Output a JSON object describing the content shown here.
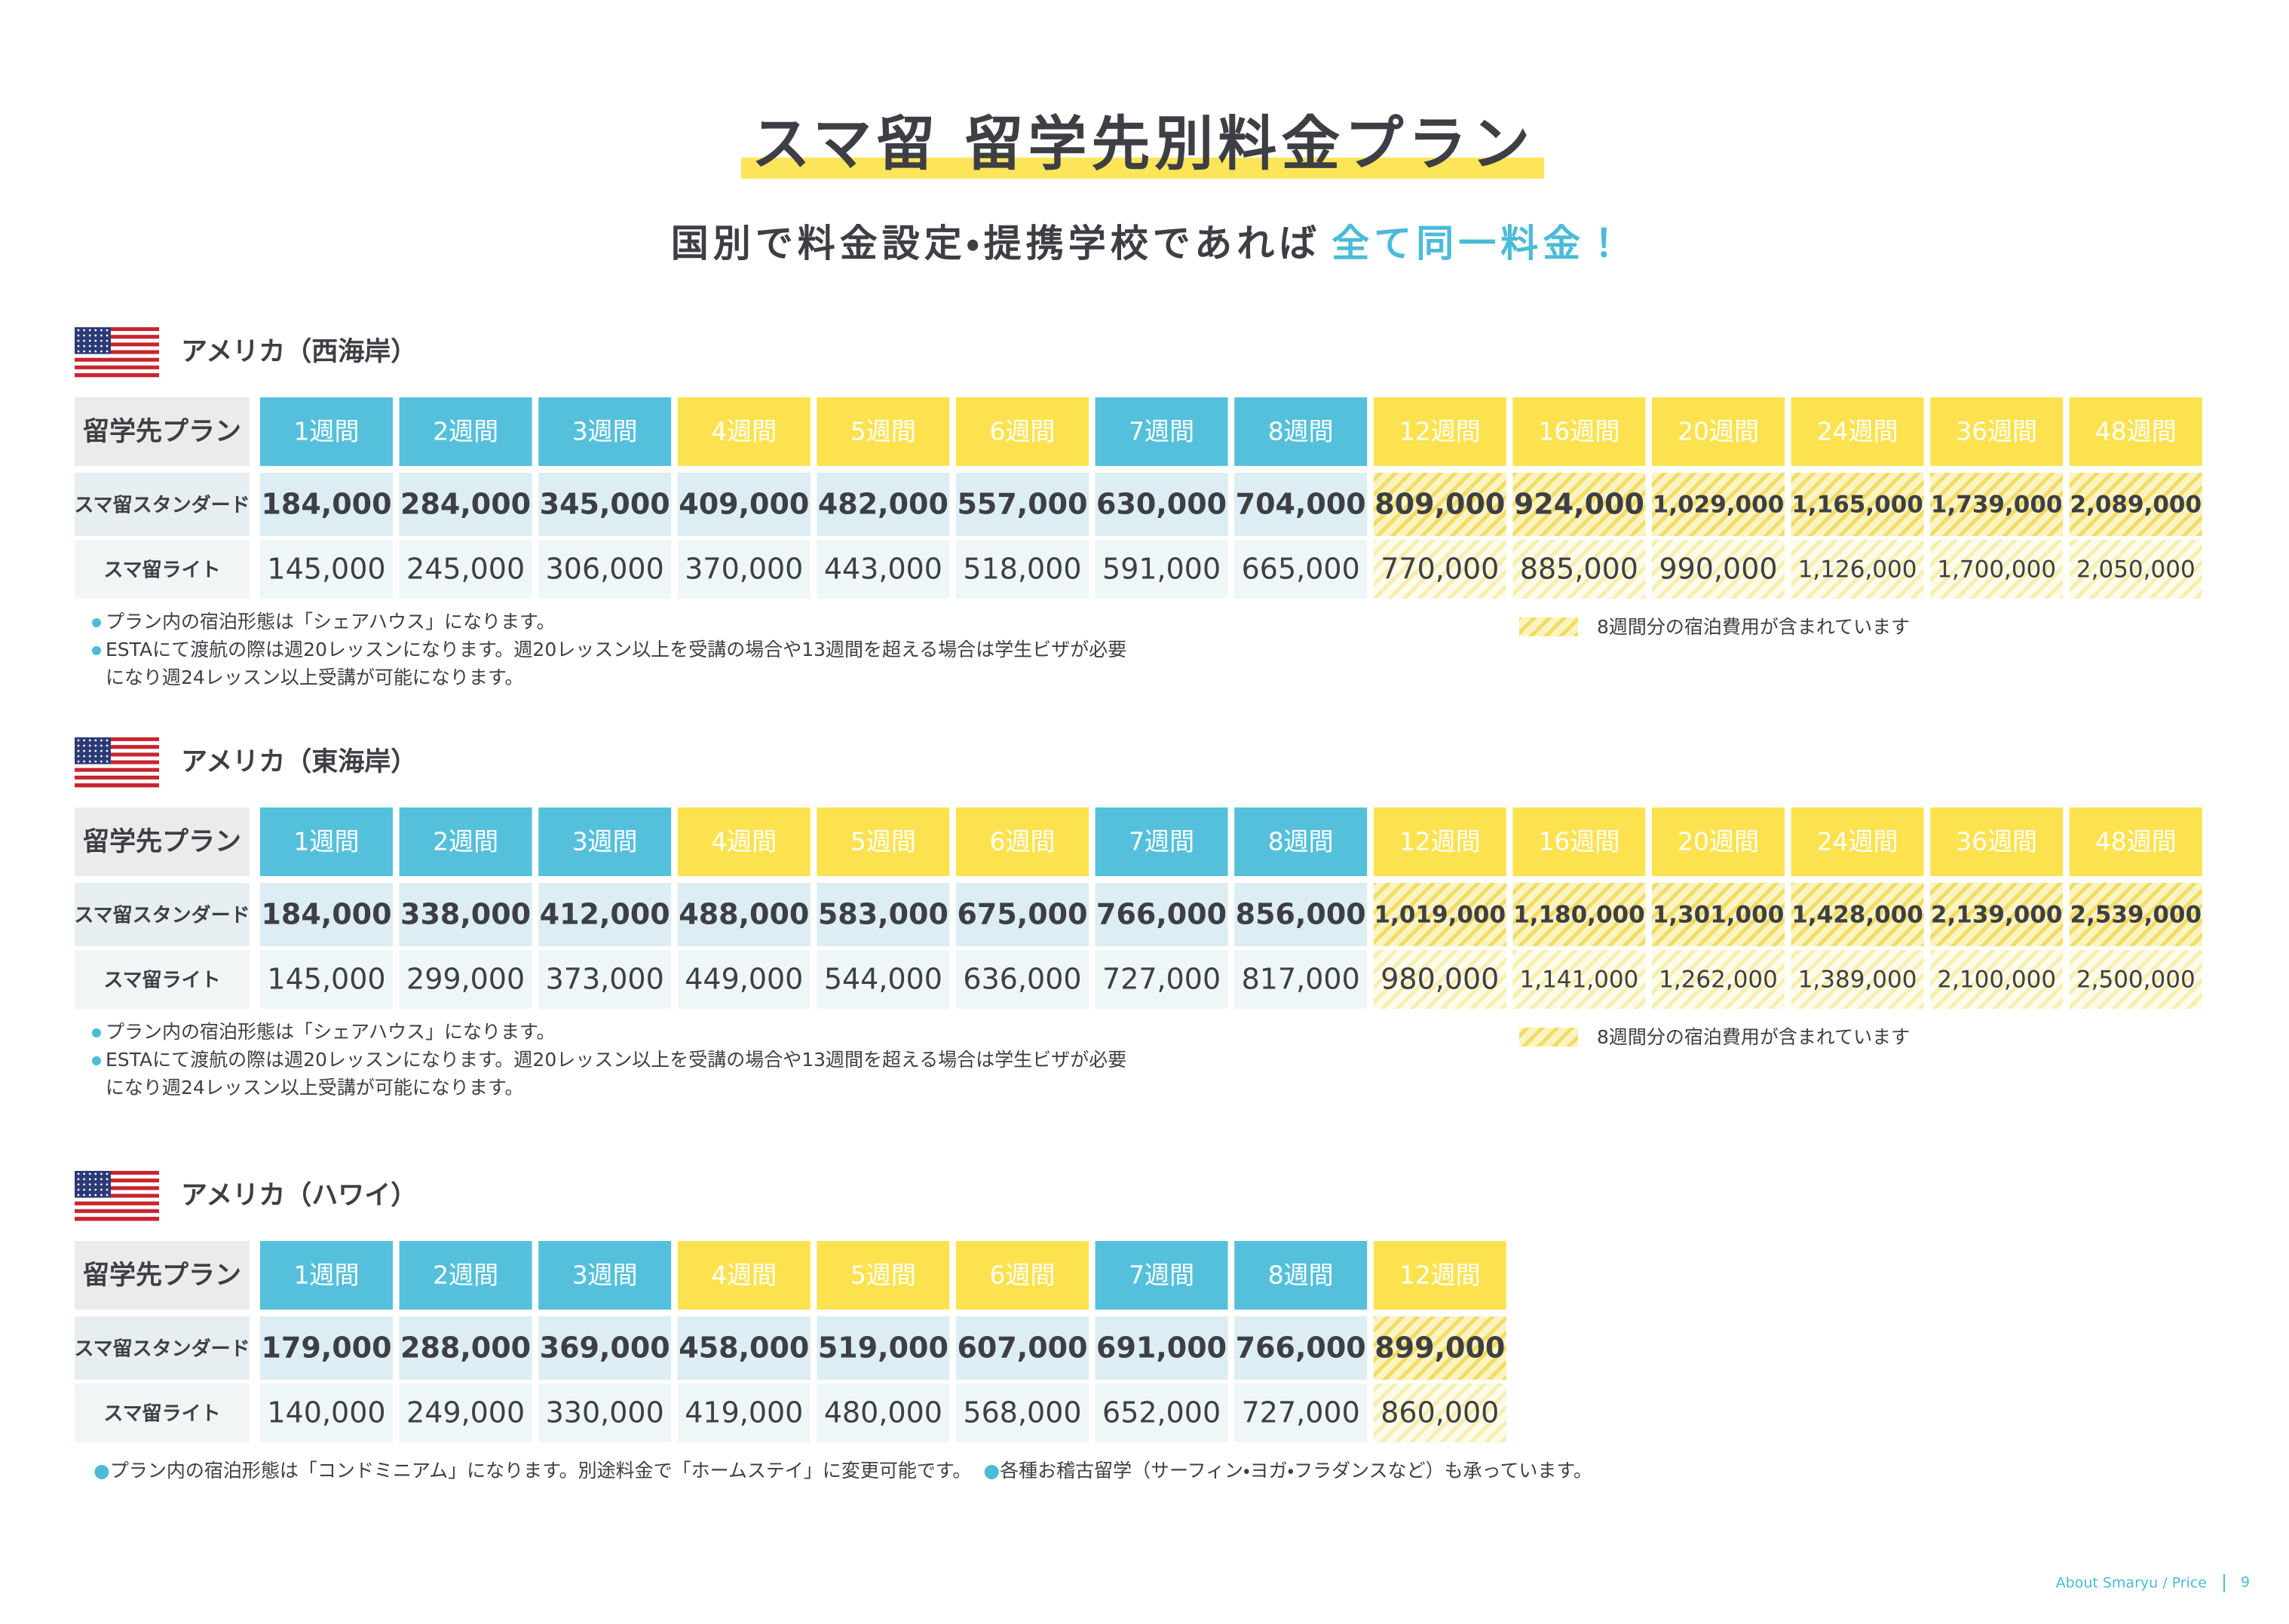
{
  "header": {
    "title": "スマ留 留学先別料金プラン",
    "subtitle_main": "国別で料金設定・提携学校であれば",
    "subtitle_highlight": "全て同一料金！"
  },
  "sections": [
    {
      "region": "アメリカ（西海岸）",
      "header_label": "留学先プラン",
      "weeks": [
        "1週間",
        "2週間",
        "3週間",
        "4週間",
        "5週間",
        "6週間",
        "7週間",
        "8週間",
        "12週間",
        "16週間",
        "20週間",
        "24週間",
        "36週間",
        "48週間"
      ],
      "rows": [
        {
          "label": "スマ留スタンダード",
          "values": [
            "184,000",
            "284,000",
            "345,000",
            "409,000",
            "482,000",
            "557,000",
            "630,000",
            "704,000",
            "809,000",
            "924,000",
            "1,029,000",
            "1,165,000",
            "1,739,000",
            "2,089,000"
          ]
        },
        {
          "label": "スマ留ライト",
          "values": [
            "145,000",
            "245,000",
            "306,000",
            "370,000",
            "443,000",
            "518,000",
            "591,000",
            "665,000",
            "770,000",
            "885,000",
            "990,000",
            "1,126,000",
            "1,700,000",
            "2,050,000"
          ]
        }
      ],
      "notes": [
        [
          "プラン内の宿泊形態は「シェアハウス」になります。"
        ],
        [
          "ESTAにて渡航の際は週20レッスンになります。週20レッスン以上を受講の場合や13週間を超える場合は学生ビザが必要",
          "になり週24レッスン以上受講が可能になります。"
        ]
      ],
      "legend": "8週間分の宿泊費用が含まれています"
    },
    {
      "region": "アメリカ（東海岸）",
      "header_label": "留学先プラン",
      "weeks": [
        "1週間",
        "2週間",
        "3週間",
        "4週間",
        "5週間",
        "6週間",
        "7週間",
        "8週間",
        "12週間",
        "16週間",
        "20週間",
        "24週間",
        "36週間",
        "48週間"
      ],
      "rows": [
        {
          "label": "スマ留スタンダード",
          "values": [
            "184,000",
            "338,000",
            "412,000",
            "488,000",
            "583,000",
            "675,000",
            "766,000",
            "856,000",
            "1,019,000",
            "1,180,000",
            "1,301,000",
            "1,428,000",
            "2,139,000",
            "2,539,000"
          ]
        },
        {
          "label": "スマ留ライト",
          "values": [
            "145,000",
            "299,000",
            "373,000",
            "449,000",
            "544,000",
            "636,000",
            "727,000",
            "817,000",
            "980,000",
            "1,141,000",
            "1,262,000",
            "1,389,000",
            "2,100,000",
            "2,500,000"
          ]
        }
      ],
      "notes": [
        [
          "プラン内の宿泊形態は「シェアハウス」になります。"
        ],
        [
          "ESTAにて渡航の際は週20レッスンになります。週20レッスン以上を受講の場合や13週間を超える場合は学生ビザが必要",
          "になり週24レッスン以上受講が可能になります。"
        ]
      ],
      "legend": "8週間分の宿泊費用が含まれています"
    },
    {
      "region": "アメリカ（ハワイ）",
      "header_label": "留学先プラン",
      "weeks": [
        "1週間",
        "2週間",
        "3週間",
        "4週間",
        "5週間",
        "6週間",
        "7週間",
        "8週間",
        "12週間"
      ],
      "rows": [
        {
          "label": "スマ留スタンダード",
          "values": [
            "179,000",
            "288,000",
            "369,000",
            "458,000",
            "519,000",
            "607,000",
            "691,000",
            "766,000",
            "899,000"
          ]
        },
        {
          "label": "スマ留ライト",
          "values": [
            "140,000",
            "249,000",
            "330,000",
            "419,000",
            "480,000",
            "568,000",
            "652,000",
            "727,000",
            "860,000"
          ]
        }
      ],
      "inline_notes": [
        "プラン内の宿泊形態は「コンドミニアム」になります。別途料金で「ホームステイ」に変更可能です。",
        "各種お稽古留学（サーフィン・ヨガ・フラダンスなど）も承っています。"
      ]
    }
  ],
  "footer": {
    "label": "About Smaryu / Price",
    "page": "9"
  }
}
